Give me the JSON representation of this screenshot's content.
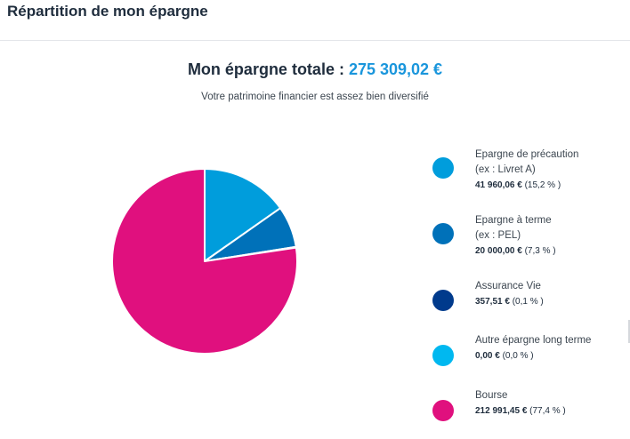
{
  "header": {
    "title": "Répartition de mon épargne"
  },
  "summary": {
    "label": "Mon épargne totale : ",
    "value": "275 309,02 €",
    "subtitle": "Votre patrimoine financier est assez bien diversifié"
  },
  "legend": [
    {
      "label1": "Epargne de précaution",
      "label2": "(ex : Livret A)",
      "amount": "41 960,06 €",
      "pct": " (15,2 % )",
      "color": "#009ddc"
    },
    {
      "label1": "Epargne à terme",
      "label2": "(ex : PEL)",
      "amount": "20 000,00 €",
      "pct": " (7,3 % )",
      "color": "#0071b9"
    },
    {
      "label1": "Assurance Vie",
      "label2": "",
      "amount": "357,51 €",
      "pct": " (0,1 % )",
      "color": "#003a8c"
    },
    {
      "label1": "Autre épargne long terme",
      "label2": "",
      "amount": "0,00 €",
      "pct": " (0,0 % )",
      "color": "#00b8f0"
    },
    {
      "label1": "Bourse",
      "label2": "",
      "amount": "212 991,45 €",
      "pct": " (77,4 % )",
      "color": "#e0107e"
    }
  ],
  "chart_data": {
    "type": "pie",
    "title": "",
    "total": 275309.02,
    "slices": [
      {
        "label": "Epargne de précaution",
        "value": 41960.06,
        "percent": 15.2,
        "color": "#009ddc"
      },
      {
        "label": "Epargne à terme",
        "value": 20000.0,
        "percent": 7.3,
        "color": "#0071b9"
      },
      {
        "label": "Assurance Vie",
        "value": 357.51,
        "percent": 0.1,
        "color": "#003a8c"
      },
      {
        "label": "Autre épargne long terme",
        "value": 0.0,
        "percent": 0.0,
        "color": "#00b8f0"
      },
      {
        "label": "Bourse",
        "value": 212991.45,
        "percent": 77.4,
        "color": "#e0107e"
      }
    ],
    "start_angle": "12 o'clock",
    "direction": "clockwise",
    "legend_position": "right"
  }
}
